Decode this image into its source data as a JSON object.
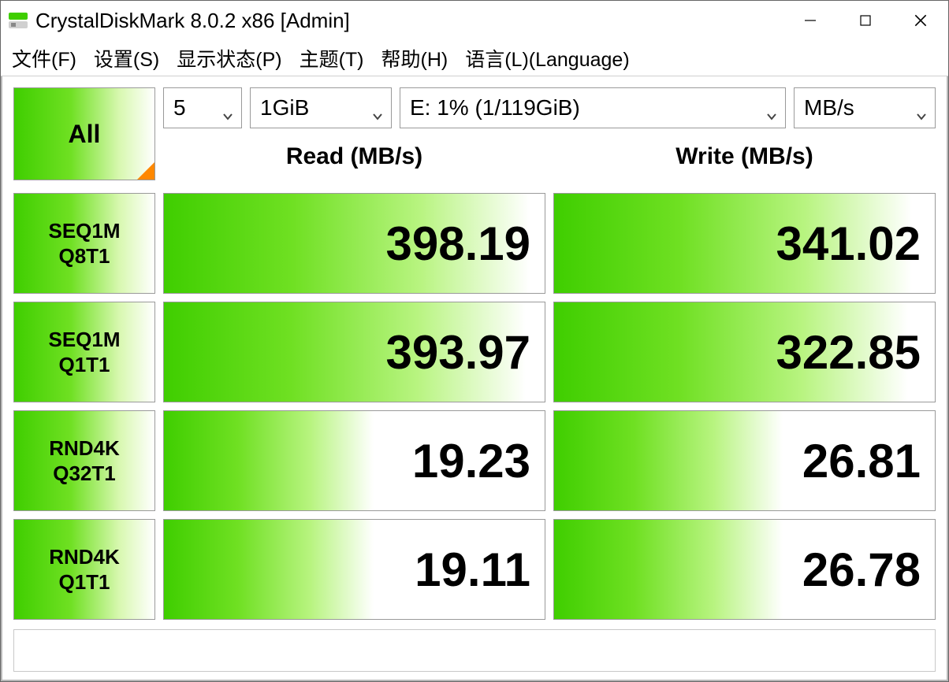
{
  "window": {
    "title": "CrystalDiskMark 8.0.2 x86 [Admin]"
  },
  "menu": {
    "file": "文件(F)",
    "settings": "设置(S)",
    "displayState": "显示状态(P)",
    "theme": "主题(T)",
    "help": "帮助(H)",
    "language": "语言(L)(Language)"
  },
  "controls": {
    "all_label": "All",
    "runs_value": "5",
    "size_value": "1GiB",
    "drive_value": "E: 1% (1/119GiB)",
    "unit_value": "MB/s"
  },
  "headers": {
    "read": "Read (MB/s)",
    "write": "Write (MB/s)"
  },
  "tests": [
    {
      "line1": "SEQ1M",
      "line2": "Q8T1",
      "read": "398.19",
      "read_fill_pct": 96,
      "write": "341.02",
      "write_fill_pct": 94
    },
    {
      "line1": "SEQ1M",
      "line2": "Q1T1",
      "read": "393.97",
      "read_fill_pct": 95,
      "write": "322.85",
      "write_fill_pct": 93
    },
    {
      "line1": "RND4K",
      "line2": "Q32T1",
      "read": "19.23",
      "read_fill_pct": 55,
      "write": "26.81",
      "write_fill_pct": 60
    },
    {
      "line1": "RND4K",
      "line2": "Q1T1",
      "read": "19.11",
      "read_fill_pct": 55,
      "write": "26.78",
      "write_fill_pct": 60
    }
  ],
  "colors": {
    "gradient_start": "#3fce00",
    "gradient_mid": "#6fe022",
    "gradient_end": "#ffffff",
    "corner_accent": "#ff8800",
    "border": "#9a9a9a",
    "text": "#000000",
    "background": "#ffffff"
  }
}
